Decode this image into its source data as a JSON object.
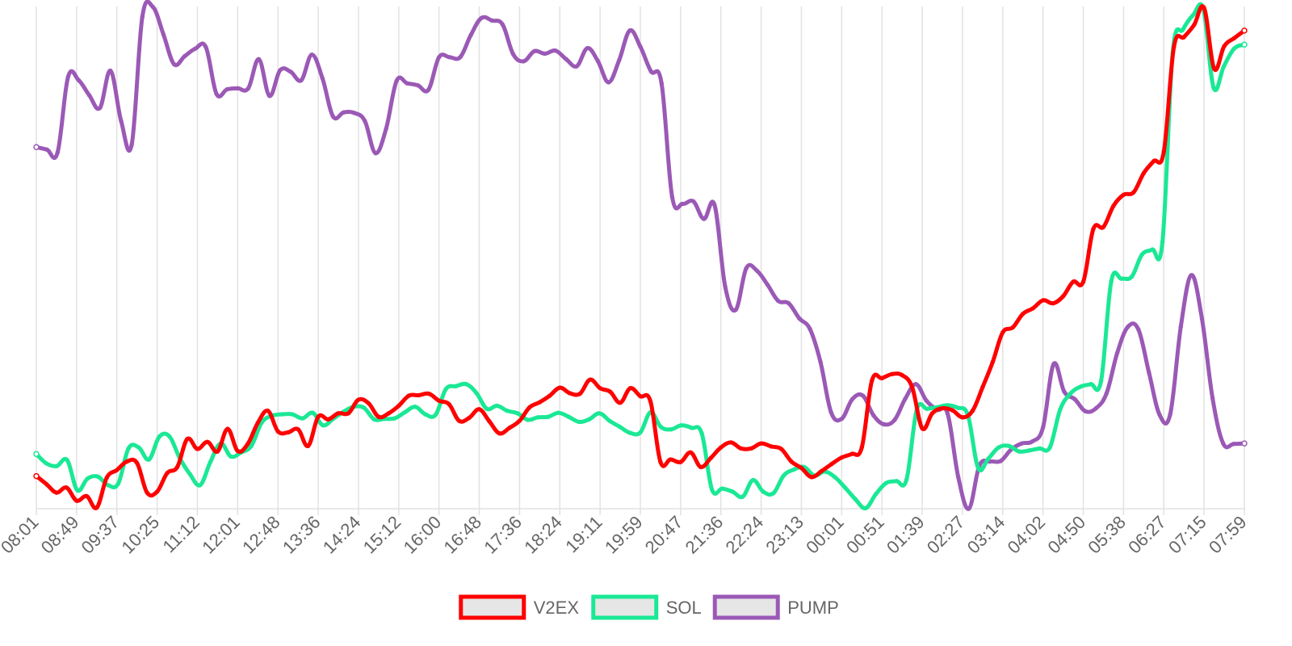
{
  "chart_data": {
    "type": "line",
    "title": "",
    "xlabel": "",
    "ylabel": "",
    "y_axis_labels_shown": false,
    "ylim": [
      0,
      100
    ],
    "grid": {
      "vertical": true,
      "horizontal": false
    },
    "legend": {
      "position": "bottom-center"
    },
    "x_tick_labels": [
      "08:01",
      "08:49",
      "09:37",
      "10:25",
      "11:12",
      "12:01",
      "12:48",
      "13:36",
      "14:24",
      "15:12",
      "16:00",
      "16:48",
      "17:36",
      "18:24",
      "19:11",
      "19:59",
      "20:47",
      "21:36",
      "22:24",
      "23:13",
      "00:01",
      "00:51",
      "01:39",
      "02:27",
      "03:14",
      "04:02",
      "04:50",
      "05:38",
      "06:27",
      "07:15",
      "07:59"
    ],
    "series": [
      {
        "name": "V2EX",
        "color": "#ff0000",
        "values": [
          6.5,
          4.9,
          3.2,
          4.2,
          1.6,
          2.5,
          0.2,
          6.2,
          7.7,
          9.4,
          9.1,
          3.2,
          3.4,
          7.1,
          8.3,
          13.9,
          11.9,
          13.3,
          11.4,
          15.9,
          11.5,
          12.9,
          17.1,
          19.5,
          15.4,
          15.2,
          15.8,
          12.5,
          18.3,
          17.8,
          19.0,
          19.0,
          21.7,
          21.0,
          18.3,
          19.0,
          20.5,
          22.5,
          22.6,
          22.9,
          21.5,
          20.8,
          17.5,
          18.1,
          19.8,
          17.4,
          15.0,
          16.1,
          17.5,
          20.2,
          21.2,
          22.5,
          24.1,
          23.0,
          22.9,
          25.7,
          24.0,
          23.3,
          21.1,
          24.0,
          22.4,
          21.4,
          9.3,
          9.8,
          9.3,
          11.2,
          8.3,
          10.1,
          12.2,
          13.2,
          12.0,
          12.0,
          13.0,
          12.4,
          11.9,
          9.4,
          8.1,
          6.3,
          7.5,
          8.9,
          10.2,
          10.9,
          12.2,
          25.5,
          26.0,
          26.8,
          26.6,
          24.2,
          16.0,
          19.0,
          20.0,
          19.6,
          18.2,
          19.5,
          24.2,
          29.2,
          35.1,
          36.1,
          38.8,
          39.9,
          41.5,
          40.9,
          42.3,
          45.2,
          45.2,
          55.7,
          56.1,
          60.3,
          62.5,
          63.0,
          66.8,
          69.2,
          71.1,
          91.9,
          93.9,
          96.3,
          99.7,
          87.6,
          92.1,
          93.7,
          95.2
        ]
      },
      {
        "name": "SOL",
        "color": "#1ae895",
        "values": [
          10.9,
          9.0,
          8.5,
          9.7,
          3.7,
          6.0,
          6.4,
          4.7,
          5.0,
          12.0,
          12.2,
          9.8,
          14.3,
          14.4,
          10.1,
          6.9,
          4.7,
          9.3,
          13.0,
          10.4,
          11.2,
          12.5,
          17.1,
          18.5,
          18.8,
          18.8,
          18.0,
          19.1,
          16.6,
          17.9,
          19.3,
          20.3,
          20.1,
          17.8,
          17.9,
          18.0,
          19.2,
          20.3,
          18.8,
          18.7,
          23.8,
          24.4,
          24.8,
          23.0,
          19.9,
          20.5,
          19.5,
          19.0,
          17.7,
          18.2,
          18.3,
          19.1,
          18.3,
          17.3,
          17.8,
          19.0,
          17.5,
          16.3,
          15.1,
          15.2,
          19.2,
          16.3,
          15.8,
          16.6,
          16.1,
          15.0,
          3.8,
          4.0,
          3.4,
          2.4,
          5.7,
          3.4,
          3.1,
          6.6,
          7.8,
          8.3,
          6.6,
          7.4,
          6.3,
          4.2,
          1.9,
          0.1,
          2.9,
          5.1,
          5.5,
          5.8,
          19.7,
          19.9,
          20.2,
          20.6,
          20.1,
          18.6,
          8.1,
          10.0,
          12.2,
          12.5,
          11.4,
          11.6,
          12.0,
          12.2,
          19.7,
          22.9,
          24.3,
          24.8,
          25.4,
          45.3,
          45.8,
          46.2,
          50.6,
          51.6,
          53.1,
          90.8,
          95.4,
          98.3,
          99.4,
          83.8,
          88.1,
          91.6,
          92.4
        ]
      },
      {
        "name": "PUMP",
        "color": "#9b59b6",
        "values": [
          72.0,
          71.5,
          70.9,
          86.0,
          85.3,
          82.3,
          79.8,
          87.2,
          77.2,
          72.5,
          97.9,
          99.9,
          94.4,
          88.5,
          90.1,
          91.6,
          91.9,
          82.6,
          83.5,
          83.7,
          83.7,
          89.5,
          82.2,
          87.3,
          87.0,
          85.3,
          90.4,
          85.7,
          78.1,
          78.9,
          78.8,
          77.2,
          70.8,
          75.6,
          85.2,
          84.7,
          84.3,
          83.4,
          89.9,
          89.9,
          89.9,
          94.3,
          97.7,
          97.2,
          96.4,
          90.5,
          89.1,
          91.1,
          90.6,
          91.2,
          89.5,
          88.1,
          91.7,
          89.1,
          84.9,
          89.3,
          95.2,
          92.0,
          87.1,
          84.7,
          62.1,
          60.7,
          61.2,
          57.7,
          60.5,
          44.3,
          39.6,
          47.9,
          47.4,
          44.6,
          41.4,
          40.9,
          37.9,
          35.8,
          29.2,
          19.2,
          17.9,
          21.8,
          22.5,
          18.6,
          16.8,
          17.7,
          21.9,
          24.8,
          21.5,
          19.7,
          18.9,
          6.3,
          0.0,
          8.6,
          9.4,
          9.5,
          11.8,
          13.0,
          13.4,
          16.2,
          28.8,
          23.3,
          21.8,
          19.4,
          20.0,
          23.0,
          31.0,
          36.2,
          35.7,
          27.1,
          18.7,
          18.8,
          36.2,
          46.5,
          37.8,
          22.0,
          13.0,
          12.9,
          13.0
        ]
      }
    ]
  }
}
